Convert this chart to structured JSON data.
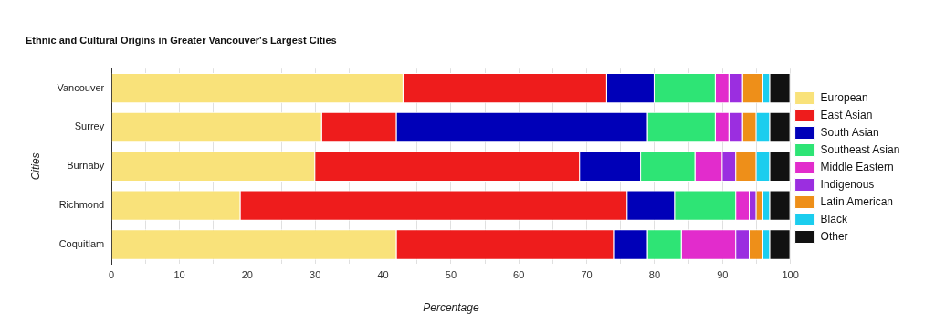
{
  "chart_data": {
    "type": "bar",
    "orientation": "horizontal",
    "stacked": true,
    "title": "Ethnic and Cultural Origins in Greater Vancouver's Largest Cities",
    "xlabel": "Percentage",
    "ylabel": "Cities",
    "categories": [
      "Vancouver",
      "Surrey",
      "Burnaby",
      "Richmond",
      "Coquitlam"
    ],
    "series": [
      {
        "name": "European",
        "color": "#f9e27a",
        "values": [
          43,
          31,
          30,
          19,
          42
        ]
      },
      {
        "name": "East Asian",
        "color": "#ee1c1c",
        "values": [
          30,
          11,
          39,
          57,
          32
        ]
      },
      {
        "name": "South Asian",
        "color": "#0000b8",
        "values": [
          7,
          37,
          9,
          7,
          5
        ]
      },
      {
        "name": "Southeast Asian",
        "color": "#2ee475",
        "values": [
          9,
          10,
          8,
          9,
          5
        ]
      },
      {
        "name": "Middle Eastern",
        "color": "#e22ccc",
        "values": [
          2,
          2,
          4,
          2,
          8
        ]
      },
      {
        "name": "Indigenous",
        "color": "#9b2ee0",
        "values": [
          2,
          2,
          2,
          1,
          2
        ]
      },
      {
        "name": "Latin American",
        "color": "#ee8f19",
        "values": [
          3,
          2,
          3,
          1,
          2
        ]
      },
      {
        "name": "Black",
        "color": "#1bcdee",
        "values": [
          1,
          2,
          2,
          1,
          1
        ]
      },
      {
        "name": "Other",
        "color": "#111111",
        "values": [
          3,
          3,
          3,
          3,
          3
        ]
      }
    ],
    "xlim": [
      0,
      100
    ],
    "xticks": [
      0,
      {
        "value": 5,
        "label": null
      },
      10,
      {
        "value": 15,
        "label": null
      },
      20,
      {
        "value": 25,
        "label": null
      },
      30,
      {
        "value": 35,
        "label": null
      },
      40,
      {
        "value": 45,
        "label": null
      },
      50,
      {
        "value": 55,
        "label": null
      },
      60,
      {
        "value": 65,
        "label": null
      },
      70,
      {
        "value": 75,
        "label": null
      },
      80,
      {
        "value": 85,
        "label": null
      },
      90,
      {
        "value": 95,
        "label": null
      },
      100
    ],
    "grid": "x",
    "legend": "right"
  }
}
